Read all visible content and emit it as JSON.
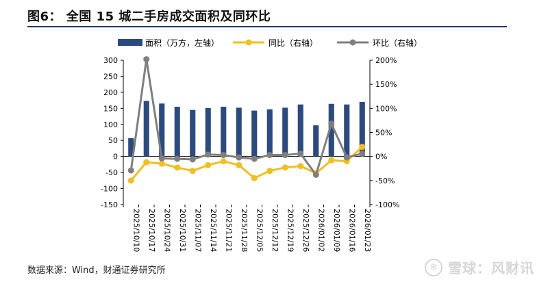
{
  "header": {
    "title": "图6： 全国 15 城二手房成交面积及同环比"
  },
  "footer": {
    "source": "数据来源：Wind，财通证券研究所"
  },
  "watermark": {
    "text": "雪球：风财讯",
    "icon": "snowball-logo-icon"
  },
  "chart_data": {
    "type": "bar",
    "categories": [
      "2025/10/10",
      "2025/10/17",
      "2025/10/24",
      "2025/10/31",
      "2025/11/07",
      "2025/11/14",
      "2025/11/21",
      "2025/11/28",
      "2025/12/05",
      "2025/12/12",
      "2025/12/19",
      "2025/12/26",
      "2026/01/02",
      "2026/01/09",
      "2026/01/16",
      "2026/01/23"
    ],
    "series": [
      {
        "name": "面积（万方，左轴）",
        "kind": "bar",
        "axis": "left",
        "color": "#2a4a80",
        "values": [
          57,
          173,
          165,
          155,
          145,
          151,
          155,
          152,
          143,
          147,
          152,
          162,
          97,
          164,
          162,
          170
        ]
      },
      {
        "name": "同比（右轴）",
        "kind": "line",
        "axis": "right",
        "color": "#f2bf1f",
        "values": [
          -50,
          -12,
          -15,
          -23,
          -30,
          -18,
          -10,
          -18,
          -45,
          -30,
          -23,
          -20,
          -35,
          -8,
          -10,
          20
        ]
      },
      {
        "name": "环比（右轴）",
        "kind": "line",
        "axis": "right",
        "color": "#7f7f7f",
        "values": [
          -29,
          202,
          -4,
          -5,
          -6,
          4,
          3,
          -2,
          -5,
          3,
          3,
          6,
          -38,
          68,
          -2,
          6
        ]
      }
    ],
    "y_left": {
      "min": -150,
      "max": 300,
      "step": 50,
      "ticks": [
        "300",
        "250",
        "200",
        "150",
        "100",
        "50",
        "0",
        "-50",
        "-100",
        "-150"
      ]
    },
    "y_right": {
      "min": -100,
      "max": 200,
      "step": 50,
      "ticks": [
        "200%",
        "150%",
        "100%",
        "50%",
        "0%",
        "-50%",
        "-100%"
      ]
    },
    "legend_position": "top",
    "grid": false
  }
}
